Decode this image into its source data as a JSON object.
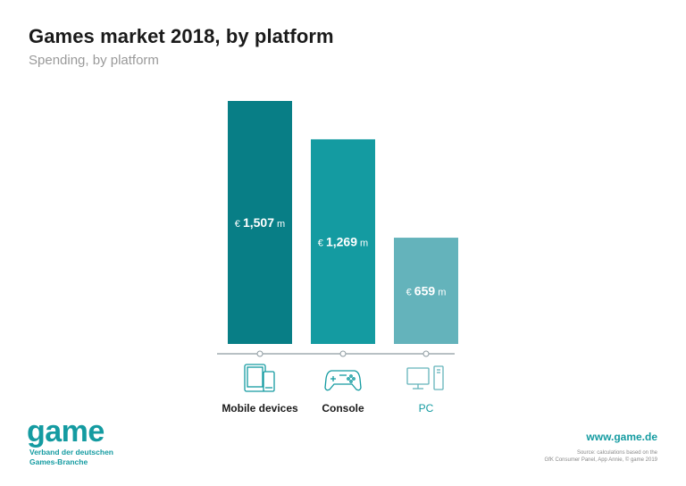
{
  "title": "Games market 2018, by platform",
  "subtitle": "Spending, by platform",
  "chart_data": {
    "type": "bar",
    "categories": [
      "Mobile devices",
      "Console",
      "PC"
    ],
    "values": [
      1507,
      1269,
      659
    ],
    "value_labels": [
      {
        "prefix": "€",
        "value": "1,507",
        "suffix": "m"
      },
      {
        "prefix": "€",
        "value": "1,269",
        "suffix": "m"
      },
      {
        "prefix": "€",
        "value": "659",
        "suffix": "m"
      }
    ],
    "icons": [
      "mobile-devices-icon",
      "console-controller-icon",
      "pc-desktop-icon"
    ],
    "colors": [
      "#087e86",
      "#149ba1",
      "#64b3bb"
    ],
    "label_colors": [
      "#1a1a1a",
      "#1a1a1a",
      "#149ba1"
    ],
    "axis_color": "#8d9aa0",
    "ylim": [
      0,
      1507
    ],
    "grid": false
  },
  "brand": {
    "logo_text": "game",
    "logo_sub_1": "Verband der deutschen",
    "logo_sub_2": "Games-Branche",
    "website": "www.game.de",
    "source_1": "Source: calculations based on the",
    "source_2": "GfK Consumer Panel, App Annie, © game 2019",
    "color": "#149ba1"
  }
}
